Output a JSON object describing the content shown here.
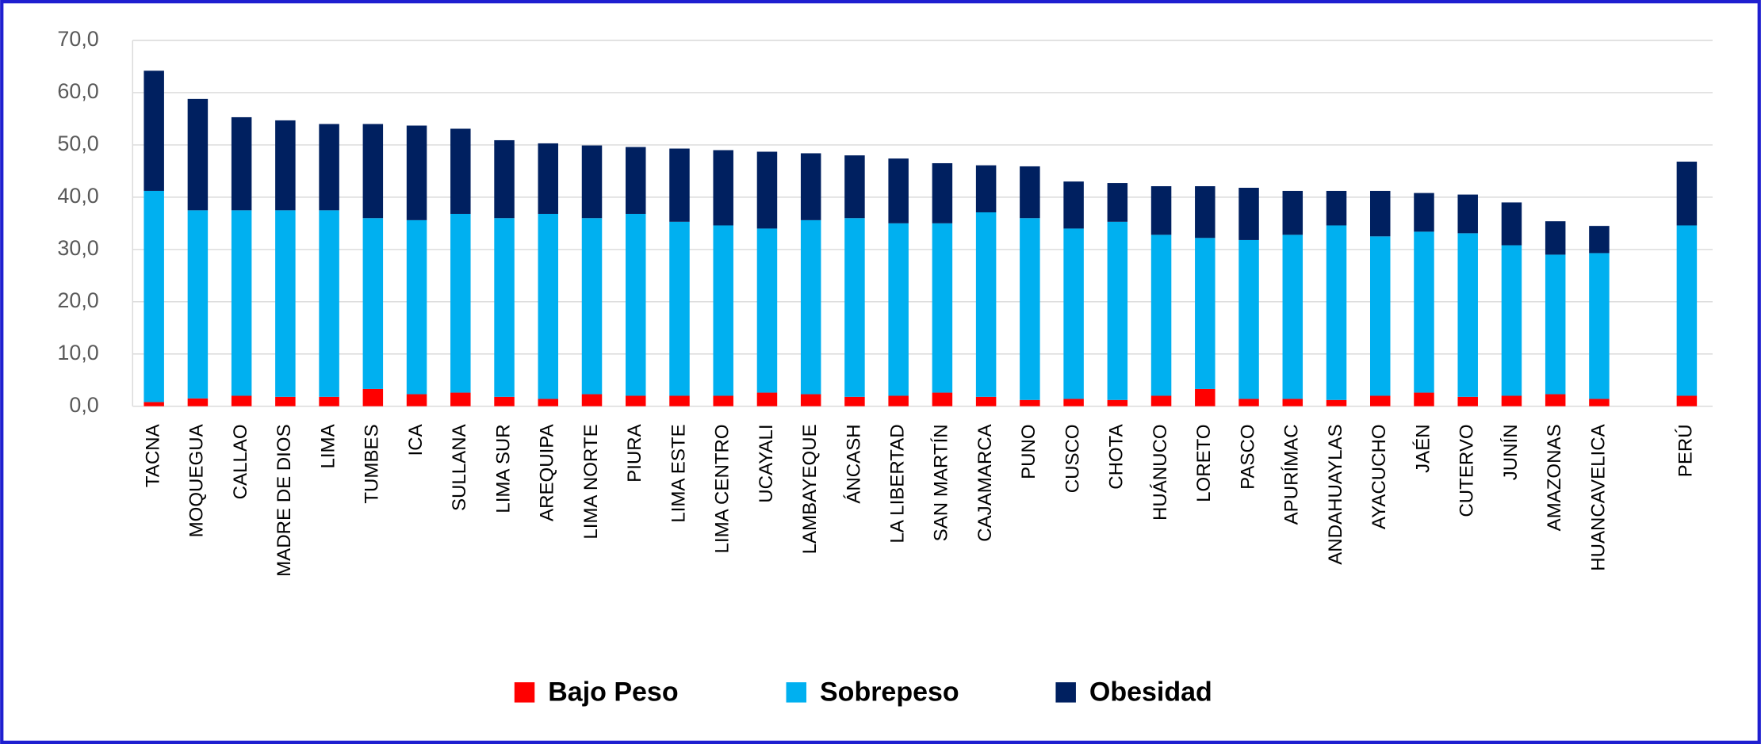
{
  "chart_data": {
    "type": "stacked_bar",
    "categories": [
      "TACNA",
      "MOQUEGUA",
      "CALLAO",
      "MADRE DE DIOS",
      "LIMA",
      "TUMBES",
      "ICA",
      "SULLANA",
      "LIMA SUR",
      "AREQUIPA",
      "LIMA NORTE",
      "PIURA",
      "LIMA ESTE",
      "LIMA CENTRO",
      "UCAYALI",
      "LAMBAYEQUE",
      "ÁNCASH",
      "LA LIBERTAD",
      "SAN MARTÍN",
      "CAJAMARCA",
      "PUNO",
      "CUSCO",
      "CHOTA",
      "HUÁNUCO",
      "LORETO",
      "PASCO",
      "APURÍMAC",
      "ANDAHUAYLAS",
      "AYACUCHO",
      "JAÉN",
      "CUTERVO",
      "JUNÍN",
      "AMAZONAS",
      "HUANCAVELICA",
      "PERÚ"
    ],
    "series": [
      {
        "name": "Bajo Peso",
        "color": "#ff0000",
        "values": [
          0.8,
          1.5,
          2.0,
          1.8,
          1.8,
          3.3,
          2.3,
          2.6,
          1.8,
          1.4,
          2.3,
          2.0,
          2.0,
          2.0,
          2.6,
          2.3,
          1.8,
          2.0,
          2.6,
          1.8,
          1.2,
          1.4,
          1.2,
          2.0,
          3.3,
          1.4,
          1.4,
          1.2,
          2.0,
          2.6,
          1.8,
          2.0,
          2.3,
          1.4,
          2.0
        ]
      },
      {
        "name": "Sobrepeso",
        "color": "#00b0f0",
        "values": [
          40.4,
          36.0,
          35.5,
          35.7,
          35.7,
          32.7,
          33.3,
          34.2,
          34.2,
          35.4,
          33.7,
          34.8,
          33.3,
          32.6,
          31.4,
          33.3,
          34.2,
          33.0,
          32.4,
          35.3,
          34.8,
          32.6,
          34.1,
          30.8,
          28.9,
          30.4,
          31.4,
          33.4,
          30.5,
          30.8,
          31.3,
          28.8,
          26.7,
          27.9,
          32.6
        ]
      },
      {
        "name": "Obesidad",
        "color": "#002060",
        "values": [
          23.0,
          21.3,
          17.8,
          17.2,
          16.5,
          18.0,
          18.1,
          16.3,
          14.9,
          13.5,
          13.9,
          12.8,
          14.0,
          14.4,
          14.7,
          12.8,
          12.0,
          12.4,
          11.5,
          9.0,
          9.9,
          9.0,
          7.4,
          9.3,
          9.9,
          10.0,
          8.4,
          6.6,
          8.7,
          7.4,
          7.4,
          8.2,
          6.4,
          5.2,
          12.2
        ]
      }
    ],
    "ylim": [
      0,
      70
    ],
    "yticks": [
      {
        "value": 0,
        "label": "0,0"
      },
      {
        "value": 10,
        "label": "10,0"
      },
      {
        "value": 20,
        "label": "20,0"
      },
      {
        "value": 30,
        "label": "30,0"
      },
      {
        "value": 40,
        "label": "40,0"
      },
      {
        "value": 50,
        "label": "50,0"
      },
      {
        "value": 60,
        "label": "60,0"
      },
      {
        "value": 70,
        "label": "70,0"
      }
    ],
    "grid": true,
    "legend": "bottom"
  }
}
